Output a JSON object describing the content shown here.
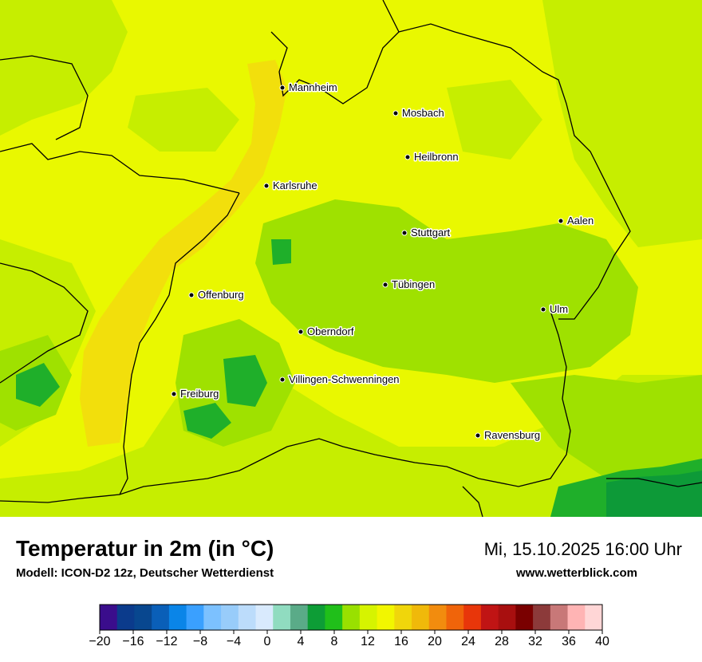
{
  "title": "Temperatur in 2m (in °C)",
  "model": "Modell: ICON-D2 12z, Deutscher Wetterdienst",
  "datetime": "Mi, 15.10.2025 16:00 Uhr",
  "website": "www.wetterblick.com",
  "cities": [
    {
      "name": "Mannheim"
    },
    {
      "name": "Mosbach"
    },
    {
      "name": "Heilbronn"
    },
    {
      "name": "Karlsruhe"
    },
    {
      "name": "Aalen"
    },
    {
      "name": "Stuttgart"
    },
    {
      "name": "Tübingen"
    },
    {
      "name": "Offenburg"
    },
    {
      "name": "Ulm"
    },
    {
      "name": "Oberndorf"
    },
    {
      "name": "Villingen-Schwenningen"
    },
    {
      "name": "Freiburg"
    },
    {
      "name": "Ravensburg"
    }
  ],
  "legend": {
    "min": -20,
    "max": 40,
    "step": 2,
    "tick_labels": [
      "−20",
      "−16",
      "−12",
      "−8",
      "−4",
      "0",
      "4",
      "8",
      "12",
      "16",
      "20",
      "24",
      "28",
      "32",
      "36",
      "40"
    ],
    "colors": [
      "#3a0d8c",
      "#0b3b8c",
      "#08478f",
      "#0a5fb8",
      "#0a85e8",
      "#3aa0ff",
      "#7cc1ff",
      "#98ccfa",
      "#bcdcfb",
      "#d9eafd",
      "#90dcc0",
      "#5aab88",
      "#0d9d36",
      "#20bf1a",
      "#99e000",
      "#d6f400",
      "#f2f600",
      "#f0d60b",
      "#f0b90a",
      "#f28c0e",
      "#f0640a",
      "#e8360a",
      "#c01414",
      "#a80f0f",
      "#7a0000",
      "#8c3a3a",
      "#c87878",
      "#ffb4b4",
      "#ffd6d6"
    ]
  },
  "map_colors": {
    "base": "#e9f800",
    "warm": "#f2df0c",
    "mild": "#c6ee00",
    "cool": "#9fe100",
    "cold": "#1faf2a",
    "colder": "#0d9a38"
  }
}
